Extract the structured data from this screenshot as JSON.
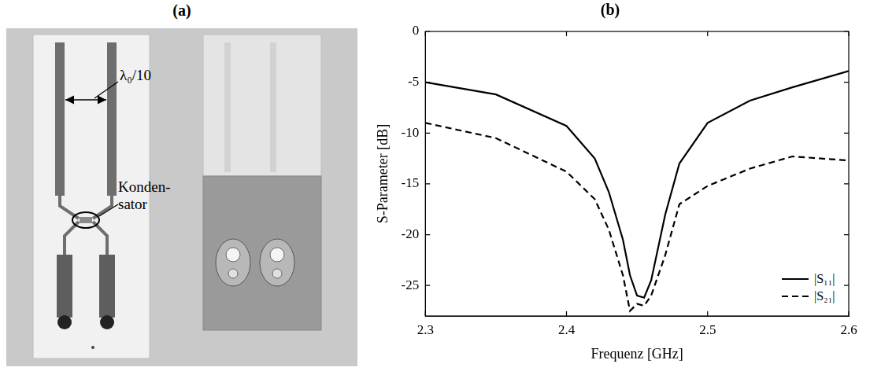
{
  "panel_a": {
    "title": "(a)",
    "labels": {
      "width": "λ₀/10",
      "capacitor": "Konden-sator"
    }
  },
  "chart_data": {
    "type": "line",
    "title": "(b)",
    "x_label": "Frequenz [GHz]",
    "y_label": "S-Parameter [dB]",
    "x": [
      2.3,
      2.35,
      2.4,
      2.42,
      2.43,
      2.44,
      2.445,
      2.45,
      2.455,
      2.46,
      2.47,
      2.48,
      2.5,
      2.53,
      2.56,
      2.6
    ],
    "series": [
      {
        "name": "|S₁₁|",
        "color": "#000000",
        "line_style": "solid",
        "values": [
          -5.0,
          -6.2,
          -9.3,
          -12.5,
          -15.8,
          -20.5,
          -24.0,
          -26.0,
          -26.2,
          -24.5,
          -18.0,
          -13.0,
          -9.0,
          -6.8,
          -5.5,
          -3.9
        ]
      },
      {
        "name": "|S₂₁|",
        "color": "#000000",
        "line_style": "dashed",
        "values": [
          -9.0,
          -10.5,
          -13.8,
          -16.5,
          -19.5,
          -24.0,
          -27.5,
          -26.8,
          -27.0,
          -26.0,
          -22.0,
          -17.0,
          -15.2,
          -13.5,
          -12.3,
          -12.7
        ]
      }
    ],
    "xlim": [
      2.3,
      2.6
    ],
    "xticks": [
      2.3,
      2.4,
      2.5,
      2.6
    ],
    "ylim": [
      -28,
      0
    ],
    "yticks": [
      -25,
      -20,
      -15,
      -10,
      -5,
      0
    ],
    "grid": false,
    "legend": "lower right"
  }
}
